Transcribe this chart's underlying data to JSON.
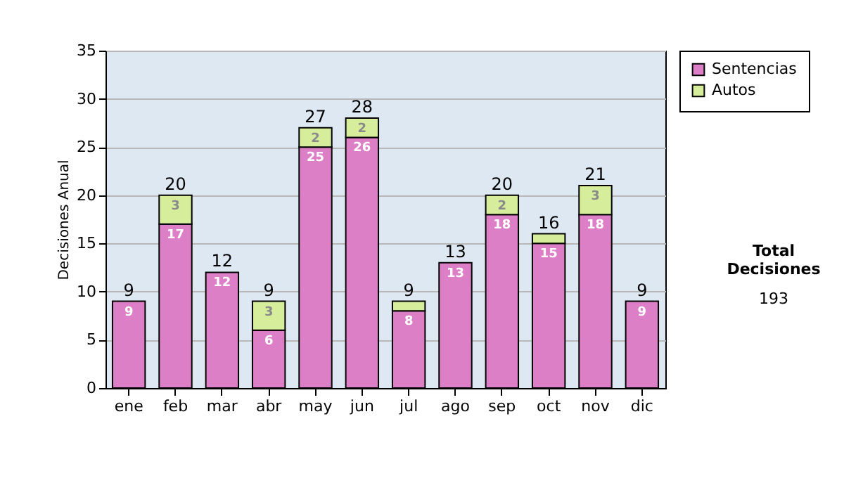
{
  "chart_data": {
    "type": "bar",
    "stacked": true,
    "ylabel": "Decisiones Anual",
    "categories": [
      "ene",
      "feb",
      "mar",
      "abr",
      "may",
      "jun",
      "jul",
      "ago",
      "sep",
      "oct",
      "nov",
      "dic"
    ],
    "series": [
      {
        "name": "Sentencias",
        "color": "#dd7fc6",
        "values": [
          9,
          17,
          12,
          6,
          25,
          26,
          8,
          13,
          18,
          15,
          18,
          9
        ],
        "value_labels": [
          "9",
          "17",
          "12",
          "6",
          "25",
          "26",
          "8",
          "13",
          "18",
          "15",
          "18",
          "9"
        ]
      },
      {
        "name": "Autos",
        "color": "#d6ee9c",
        "values": [
          0,
          3,
          0,
          3,
          2,
          2,
          1,
          0,
          2,
          1,
          3,
          0
        ],
        "value_labels": [
          null,
          "3",
          null,
          "3",
          "2",
          "2",
          null,
          null,
          "2",
          null,
          "3",
          null
        ]
      }
    ],
    "totals": [
      "9",
      "20",
      "12",
      "9",
      "27",
      "28",
      "9",
      "13",
      "20",
      "16",
      "21",
      "9"
    ],
    "ylim": [
      0,
      35
    ],
    "yticks": [
      0,
      5,
      10,
      15,
      20,
      25,
      30,
      35
    ],
    "grid": "y",
    "legend": "right",
    "annotations": [
      "Total Decisiones",
      "193"
    ]
  }
}
